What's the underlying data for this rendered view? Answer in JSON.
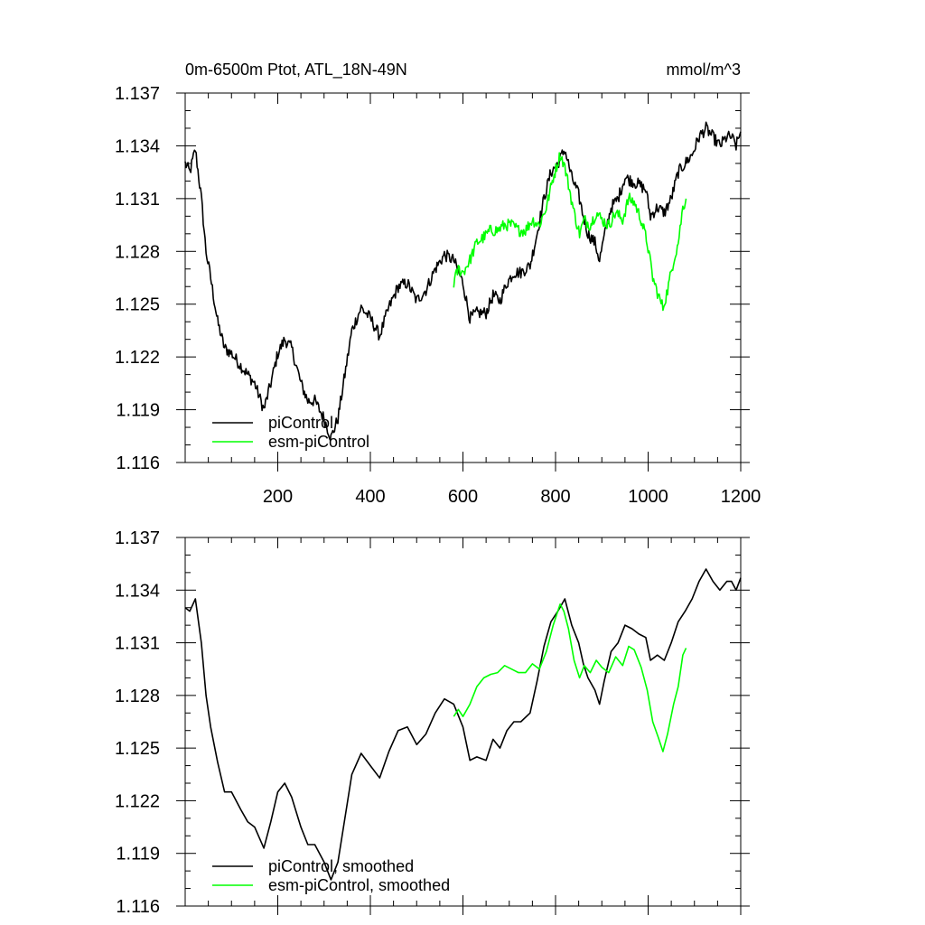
{
  "chart_data": [
    {
      "type": "line",
      "title": "0m-6500m Ptot, ATL_18N-49N",
      "units": "mmol/m^3",
      "xlim": [
        0,
        1200
      ],
      "ylim": [
        1.116,
        1.137
      ],
      "x_ticks": [
        "200",
        "400",
        "600",
        "800",
        "1000",
        "1200"
      ],
      "y_ticks": [
        "1.137",
        "1.134",
        "1.131",
        "1.128",
        "1.125",
        "1.122",
        "1.119",
        "1.116"
      ],
      "legend_position": "bottom-left",
      "series": [
        {
          "name": "piControl",
          "color": "#000000",
          "points": [
            [
              0,
              1.133
            ],
            [
              10,
              1.1325
            ],
            [
              22,
              1.1338
            ],
            [
              35,
              1.131
            ],
            [
              45,
              1.128
            ],
            [
              55,
              1.1265
            ],
            [
              70,
              1.124
            ],
            [
              85,
              1.1225
            ],
            [
              100,
              1.1222
            ],
            [
              120,
              1.1215
            ],
            [
              135,
              1.121
            ],
            [
              150,
              1.1205
            ],
            [
              170,
              1.119
            ],
            [
              185,
              1.1205
            ],
            [
              200,
              1.1222
            ],
            [
              215,
              1.123
            ],
            [
              230,
              1.1225
            ],
            [
              250,
              1.1205
            ],
            [
              265,
              1.1195
            ],
            [
              280,
              1.1195
            ],
            [
              300,
              1.1185
            ],
            [
              315,
              1.1174
            ],
            [
              330,
              1.1185
            ],
            [
              345,
              1.121
            ],
            [
              360,
              1.1235
            ],
            [
              380,
              1.1248
            ],
            [
              400,
              1.1242
            ],
            [
              420,
              1.1232
            ],
            [
              440,
              1.1248
            ],
            [
              460,
              1.126
            ],
            [
              480,
              1.1262
            ],
            [
              500,
              1.1252
            ],
            [
              520,
              1.1258
            ],
            [
              540,
              1.127
            ],
            [
              560,
              1.1278
            ],
            [
              580,
              1.1275
            ],
            [
              600,
              1.1262
            ],
            [
              615,
              1.1242
            ],
            [
              630,
              1.1245
            ],
            [
              650,
              1.1245
            ],
            [
              665,
              1.1255
            ],
            [
              680,
              1.1252
            ],
            [
              695,
              1.1262
            ],
            [
              710,
              1.1268
            ],
            [
              725,
              1.1268
            ],
            [
              745,
              1.1272
            ],
            [
              760,
              1.129
            ],
            [
              775,
              1.131
            ],
            [
              790,
              1.1325
            ],
            [
              805,
              1.133
            ],
            [
              820,
              1.1338
            ],
            [
              835,
              1.1322
            ],
            [
              850,
              1.1312
            ],
            [
              860,
              1.13
            ],
            [
              870,
              1.129
            ],
            [
              885,
              1.1285
            ],
            [
              895,
              1.1275
            ],
            [
              905,
              1.1288
            ],
            [
              920,
              1.1305
            ],
            [
              935,
              1.131
            ],
            [
              950,
              1.1322
            ],
            [
              965,
              1.132
            ],
            [
              980,
              1.1318
            ],
            [
              995,
              1.1315
            ],
            [
              1005,
              1.13
            ],
            [
              1020,
              1.1305
            ],
            [
              1035,
              1.1302
            ],
            [
              1050,
              1.131
            ],
            [
              1065,
              1.1325
            ],
            [
              1080,
              1.133
            ],
            [
              1095,
              1.1335
            ],
            [
              1110,
              1.1345
            ],
            [
              1125,
              1.135
            ],
            [
              1140,
              1.1345
            ],
            [
              1155,
              1.134
            ],
            [
              1170,
              1.1345
            ],
            [
              1180,
              1.1345
            ],
            [
              1190,
              1.134
            ],
            [
              1200,
              1.1348
            ]
          ]
        },
        {
          "name": "esm-piControl",
          "color": "#00ff00",
          "points": [
            [
              580,
              1.1262
            ],
            [
              590,
              1.127
            ],
            [
              600,
              1.1268
            ],
            [
              615,
              1.1275
            ],
            [
              630,
              1.1285
            ],
            [
              645,
              1.1288
            ],
            [
              660,
              1.1292
            ],
            [
              675,
              1.1292
            ],
            [
              690,
              1.1295
            ],
            [
              705,
              1.1295
            ],
            [
              720,
              1.1292
            ],
            [
              735,
              1.1292
            ],
            [
              750,
              1.1298
            ],
            [
              765,
              1.1295
            ],
            [
              780,
              1.1305
            ],
            [
              795,
              1.1322
            ],
            [
              810,
              1.1335
            ],
            [
              818,
              1.133
            ],
            [
              828,
              1.1318
            ],
            [
              840,
              1.1302
            ],
            [
              852,
              1.129
            ],
            [
              862,
              1.1298
            ],
            [
              875,
              1.1295
            ],
            [
              888,
              1.1302
            ],
            [
              900,
              1.1298
            ],
            [
              915,
              1.1295
            ],
            [
              930,
              1.1302
            ],
            [
              945,
              1.1298
            ],
            [
              958,
              1.131
            ],
            [
              970,
              1.1308
            ],
            [
              985,
              1.1298
            ],
            [
              998,
              1.1285
            ],
            [
              1010,
              1.1265
            ],
            [
              1022,
              1.1255
            ],
            [
              1032,
              1.1248
            ],
            [
              1042,
              1.1258
            ],
            [
              1055,
              1.1275
            ],
            [
              1065,
              1.1285
            ],
            [
              1075,
              1.1305
            ],
            [
              1082,
              1.131
            ]
          ]
        }
      ]
    },
    {
      "type": "line",
      "title": "",
      "units": "",
      "xlim": [
        0,
        1200
      ],
      "ylim": [
        1.116,
        1.137
      ],
      "x_ticks": [],
      "y_ticks": [
        "1.137",
        "1.134",
        "1.131",
        "1.128",
        "1.125",
        "1.122",
        "1.119",
        "1.116"
      ],
      "legend_position": "bottom-left",
      "series": [
        {
          "name": "piControl, smoothed",
          "color": "#000000",
          "points": [
            [
              0,
              1.133
            ],
            [
              10,
              1.1328
            ],
            [
              22,
              1.1335
            ],
            [
              35,
              1.131
            ],
            [
              45,
              1.128
            ],
            [
              55,
              1.1262
            ],
            [
              70,
              1.1242
            ],
            [
              85,
              1.1225
            ],
            [
              100,
              1.1225
            ],
            [
              120,
              1.1215
            ],
            [
              135,
              1.1208
            ],
            [
              150,
              1.1205
            ],
            [
              170,
              1.1193
            ],
            [
              185,
              1.1208
            ],
            [
              200,
              1.1225
            ],
            [
              215,
              1.123
            ],
            [
              230,
              1.1222
            ],
            [
              250,
              1.1205
            ],
            [
              265,
              1.1195
            ],
            [
              280,
              1.1195
            ],
            [
              300,
              1.1185
            ],
            [
              315,
              1.1175
            ],
            [
              330,
              1.1185
            ],
            [
              345,
              1.121
            ],
            [
              360,
              1.1235
            ],
            [
              380,
              1.1247
            ],
            [
              400,
              1.124
            ],
            [
              420,
              1.1233
            ],
            [
              440,
              1.1248
            ],
            [
              460,
              1.126
            ],
            [
              480,
              1.1262
            ],
            [
              500,
              1.1252
            ],
            [
              520,
              1.1258
            ],
            [
              540,
              1.127
            ],
            [
              560,
              1.1278
            ],
            [
              580,
              1.1275
            ],
            [
              600,
              1.1262
            ],
            [
              615,
              1.1243
            ],
            [
              630,
              1.1245
            ],
            [
              650,
              1.1243
            ],
            [
              665,
              1.1255
            ],
            [
              680,
              1.125
            ],
            [
              695,
              1.126
            ],
            [
              710,
              1.1265
            ],
            [
              725,
              1.1265
            ],
            [
              745,
              1.127
            ],
            [
              760,
              1.1288
            ],
            [
              775,
              1.1308
            ],
            [
              790,
              1.1322
            ],
            [
              805,
              1.1328
            ],
            [
              820,
              1.1335
            ],
            [
              835,
              1.132
            ],
            [
              850,
              1.131
            ],
            [
              860,
              1.1298
            ],
            [
              870,
              1.129
            ],
            [
              885,
              1.1283
            ],
            [
              895,
              1.1275
            ],
            [
              905,
              1.1288
            ],
            [
              920,
              1.1305
            ],
            [
              935,
              1.131
            ],
            [
              950,
              1.132
            ],
            [
              965,
              1.1318
            ],
            [
              980,
              1.1315
            ],
            [
              995,
              1.1313
            ],
            [
              1005,
              1.13
            ],
            [
              1020,
              1.1303
            ],
            [
              1035,
              1.13
            ],
            [
              1050,
              1.131
            ],
            [
              1065,
              1.1322
            ],
            [
              1080,
              1.1328
            ],
            [
              1095,
              1.1335
            ],
            [
              1110,
              1.1345
            ],
            [
              1125,
              1.1352
            ],
            [
              1140,
              1.1345
            ],
            [
              1155,
              1.134
            ],
            [
              1170,
              1.1345
            ],
            [
              1180,
              1.1345
            ],
            [
              1190,
              1.134
            ],
            [
              1200,
              1.1347
            ]
          ]
        },
        {
          "name": "esm-piControl, smoothed",
          "color": "#00ff00",
          "points": [
            [
              580,
              1.1268
            ],
            [
              590,
              1.1272
            ],
            [
              600,
              1.1268
            ],
            [
              615,
              1.1275
            ],
            [
              630,
              1.1285
            ],
            [
              645,
              1.129
            ],
            [
              660,
              1.1292
            ],
            [
              675,
              1.1293
            ],
            [
              690,
              1.1297
            ],
            [
              705,
              1.1295
            ],
            [
              720,
              1.1293
            ],
            [
              735,
              1.1293
            ],
            [
              750,
              1.1298
            ],
            [
              765,
              1.1295
            ],
            [
              780,
              1.1305
            ],
            [
              795,
              1.132
            ],
            [
              810,
              1.1332
            ],
            [
              818,
              1.1328
            ],
            [
              828,
              1.1318
            ],
            [
              840,
              1.13
            ],
            [
              852,
              1.129
            ],
            [
              862,
              1.1297
            ],
            [
              875,
              1.1293
            ],
            [
              888,
              1.13
            ],
            [
              900,
              1.1296
            ],
            [
              915,
              1.1293
            ],
            [
              930,
              1.1302
            ],
            [
              945,
              1.1297
            ],
            [
              958,
              1.1308
            ],
            [
              970,
              1.1306
            ],
            [
              985,
              1.1296
            ],
            [
              998,
              1.1283
            ],
            [
              1010,
              1.1265
            ],
            [
              1022,
              1.1256
            ],
            [
              1032,
              1.1248
            ],
            [
              1042,
              1.1258
            ],
            [
              1055,
              1.1275
            ],
            [
              1065,
              1.1285
            ],
            [
              1075,
              1.1303
            ],
            [
              1082,
              1.1307
            ]
          ]
        }
      ]
    }
  ]
}
